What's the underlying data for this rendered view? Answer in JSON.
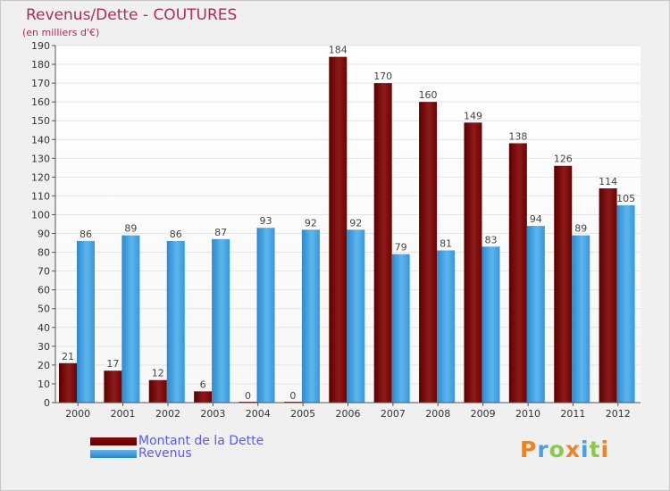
{
  "header": {
    "title": "Revenus/Dette - COUTURES",
    "subtitle": "(en milliers d'€)"
  },
  "legend": {
    "dette_label": "Montant de la Dette",
    "revenus_label": "Revenus"
  },
  "logo": {
    "text": "Proxiti",
    "colors": [
      "#e8842a",
      "#4aa0e0",
      "#8cc84a",
      "#e8842a",
      "#4aa0e0",
      "#8cc84a",
      "#e8842a"
    ]
  },
  "colors": {
    "dette": "#7a0a0a",
    "revenus": "#3a9ee6",
    "title": "#b22a55",
    "legend_text": "#5a5aee"
  },
  "chart_data": {
    "type": "bar",
    "categories": [
      "2000",
      "2001",
      "2002",
      "2003",
      "2004",
      "2005",
      "2006",
      "2007",
      "2008",
      "2009",
      "2010",
      "2011",
      "2012"
    ],
    "series": [
      {
        "name": "Montant de la Dette",
        "values": [
          21,
          17,
          12,
          6,
          0,
          0,
          184,
          170,
          160,
          149,
          138,
          126,
          114
        ]
      },
      {
        "name": "Revenus",
        "values": [
          86,
          89,
          86,
          87,
          93,
          92,
          92,
          79,
          81,
          83,
          94,
          89,
          105
        ]
      }
    ],
    "title": "Revenus/Dette - COUTURES",
    "subtitle": "(en milliers d'€)",
    "ylim": [
      0,
      190
    ],
    "yticks": [
      0,
      10,
      20,
      30,
      40,
      50,
      60,
      70,
      80,
      90,
      100,
      110,
      120,
      130,
      140,
      150,
      160,
      170,
      180,
      190
    ],
    "grid": true,
    "legend_position": "bottom-left"
  }
}
